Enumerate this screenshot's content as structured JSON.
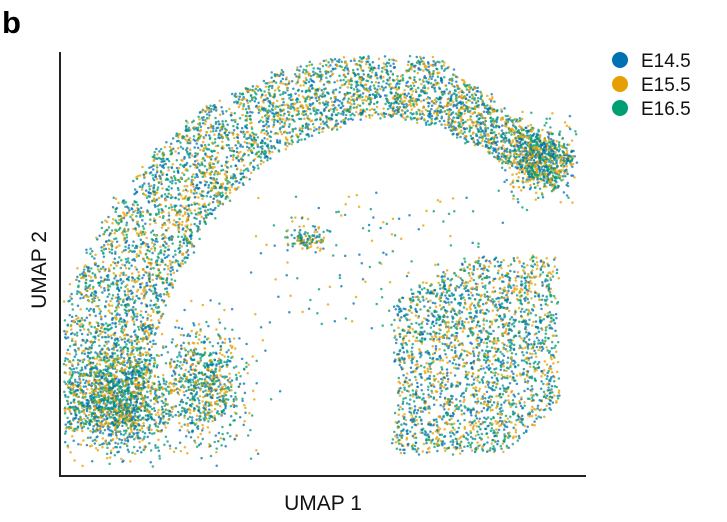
{
  "panel_label": "b",
  "chart_data": {
    "type": "scatter",
    "title": "",
    "xlabel": "UMAP 1",
    "ylabel": "UMAP 2",
    "grid": false,
    "ticks": false,
    "legend_position": "top-right",
    "series": [
      {
        "name": "E14.5",
        "color": "#0072B2"
      },
      {
        "name": "E15.5",
        "color": "#E69F00"
      },
      {
        "name": "E16.5",
        "color": "#009E73"
      }
    ],
    "clusters": [
      {
        "label": "left-lower lobe",
        "shape": "embedding-density-region"
      },
      {
        "label": "upper arc",
        "shape": "embedding-density-region"
      },
      {
        "label": "right-upper arm",
        "shape": "embedding-density-region"
      },
      {
        "label": "central islet",
        "shape": "embedding-density-region"
      },
      {
        "label": "right-lower block",
        "shape": "embedding-density-region"
      }
    ]
  }
}
